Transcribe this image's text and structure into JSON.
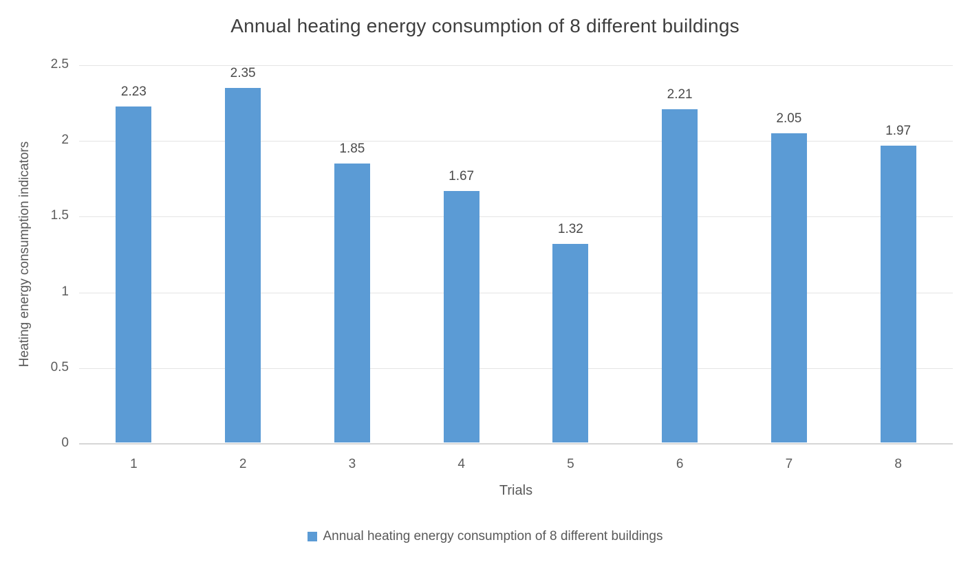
{
  "chart_data": {
    "type": "bar",
    "title": "Annual heating energy consumption of 8 different buildings",
    "categories": [
      "1",
      "2",
      "3",
      "4",
      "5",
      "6",
      "7",
      "8"
    ],
    "values": [
      2.23,
      2.35,
      1.85,
      1.67,
      1.32,
      2.21,
      2.05,
      1.97
    ],
    "value_labels": [
      "2.23",
      "2.35",
      "1.85",
      "1.67",
      "1.32",
      "2.21",
      "2.05",
      "1.97"
    ],
    "xlabel": "Trials",
    "ylabel": "Heating energy consumption indicators",
    "ylim": [
      0,
      2.5
    ],
    "yticks": [
      0,
      0.5,
      1,
      1.5,
      2,
      2.5
    ],
    "ytick_labels": [
      "0",
      "0.5",
      "1",
      "1.5",
      "2",
      "2.5"
    ],
    "grid": true,
    "bar_color": "#5B9BD5",
    "legend": {
      "position": "bottom",
      "entries": [
        {
          "label": "Annual heating energy consumption of 8 different buildings",
          "color": "#5B9BD5"
        }
      ]
    }
  },
  "colors": {
    "background": "#ffffff",
    "gridline": "#e4e4e4",
    "baseline": "#d6d6d6",
    "title_text": "#3e3e3e",
    "tick_text": "#5c5c5c",
    "value_label_text": "#4a4a4a"
  }
}
